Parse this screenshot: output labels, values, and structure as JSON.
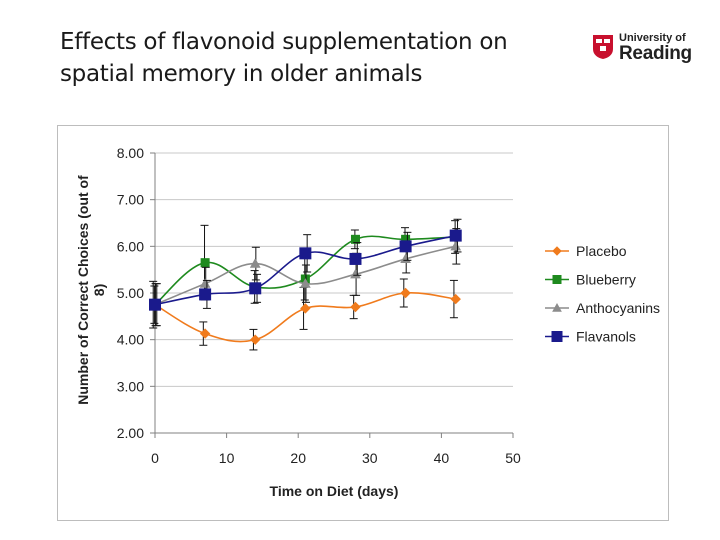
{
  "slide": {
    "title_line1": "Effects of flavonoid supplementation on",
    "title_line2": "spatial memory in older animals"
  },
  "logo": {
    "line1": "University of",
    "line2": "Reading",
    "shield_color": "#c8102e"
  },
  "chart_data": {
    "type": "line",
    "title": "",
    "xlabel": "Time on Diet (days)",
    "ylabel_line1": "Number of Correct Choices (out of",
    "ylabel_line2": "8)",
    "xlim": [
      0,
      50
    ],
    "ylim": [
      2,
      8
    ],
    "xticks": [
      "0",
      "10",
      "20",
      "30",
      "40",
      "50"
    ],
    "xtick_values": [
      0,
      10,
      20,
      30,
      40,
      50
    ],
    "yticks": [
      "2.00",
      "3.00",
      "4.00",
      "5.00",
      "6.00",
      "7.00",
      "8.00"
    ],
    "ytick_values": [
      2,
      3,
      4,
      5,
      6,
      7,
      8
    ],
    "grid": "horizontal",
    "legend_position": "right",
    "x": [
      0,
      7,
      14,
      21,
      28,
      35,
      42
    ],
    "series": [
      {
        "name": "Placebo",
        "color": "#f07b1d",
        "marker": "diamond",
        "values": [
          4.75,
          4.13,
          4.0,
          4.67,
          4.7,
          5.0,
          4.87
        ],
        "errors": [
          0.5,
          0.25,
          0.22,
          0.45,
          0.25,
          0.3,
          0.4
        ]
      },
      {
        "name": "Blueberry",
        "color": "#1e8a1e",
        "marker": "square",
        "values": [
          4.75,
          5.65,
          5.13,
          5.3,
          6.15,
          6.15,
          6.2
        ],
        "errors": [
          0.4,
          0.8,
          0.35,
          0.45,
          0.2,
          0.25,
          0.35
        ]
      },
      {
        "name": "Anthocyanins",
        "color": "#8c8c8c",
        "marker": "triangle",
        "values": [
          4.75,
          5.2,
          5.63,
          5.2,
          5.4,
          5.73,
          6.0
        ],
        "errors": [
          0.45,
          0.35,
          0.35,
          0.4,
          0.45,
          0.3,
          0.38
        ]
      },
      {
        "name": "Flavanols",
        "color": "#1a1a8c",
        "marker": "square",
        "values": [
          4.75,
          4.97,
          5.1,
          5.85,
          5.73,
          6.0,
          6.23
        ],
        "errors": [
          0.45,
          0.3,
          0.3,
          0.4,
          0.35,
          0.3,
          0.35
        ]
      }
    ]
  }
}
